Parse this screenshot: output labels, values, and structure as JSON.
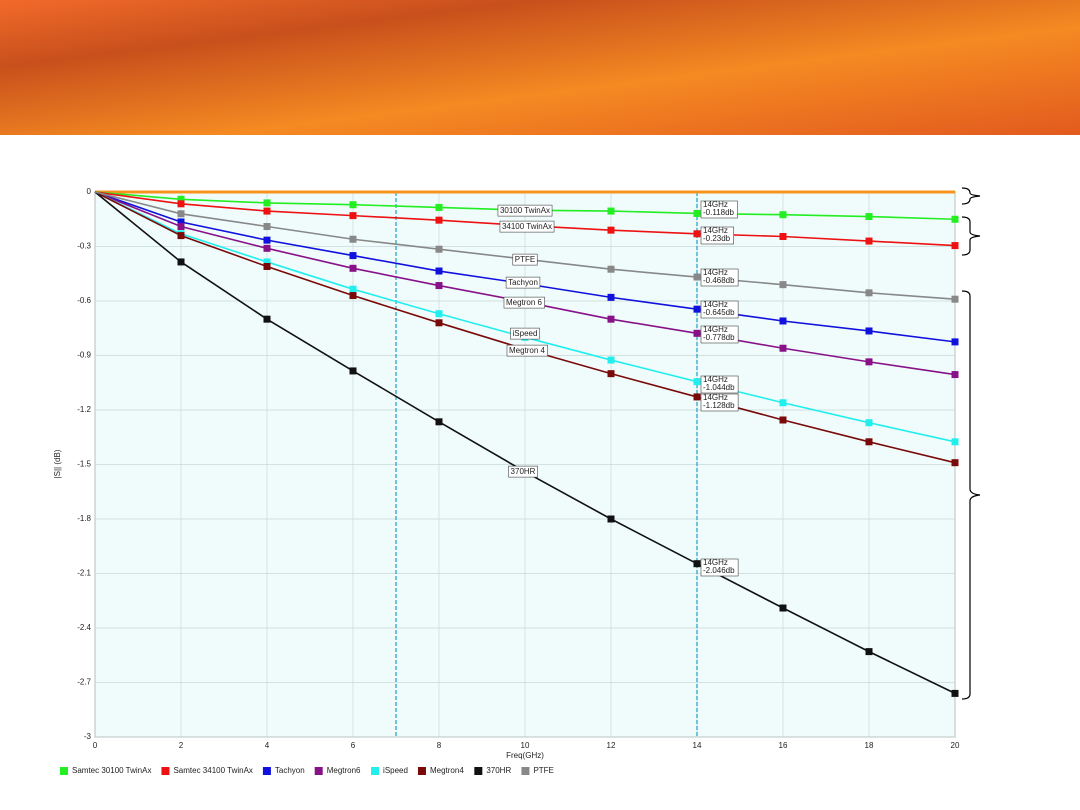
{
  "chart_data": {
    "type": "line",
    "y_label": "|S|| (dB)",
    "x_label": "Freq(GHz)",
    "x": [
      0,
      2,
      4,
      6,
      8,
      10,
      12,
      14,
      16,
      18,
      20
    ],
    "xlim": [
      0,
      20
    ],
    "xticks": [
      0,
      2,
      4,
      6,
      8,
      10,
      12,
      14,
      16,
      18,
      20
    ],
    "ylim": [
      -3,
      0
    ],
    "yticks": [
      0,
      -0.3,
      -0.6,
      -0.9,
      -1.2,
      -1.5,
      -1.8,
      -2.1,
      -2.4,
      -2.7,
      -3
    ],
    "grid": true,
    "legend": "bottom",
    "markers_x": [
      7,
      14
    ],
    "callout_prefix": "14GHz",
    "reference": {
      "color": "#f7941d",
      "values": [
        0,
        0,
        0,
        0,
        0,
        0,
        0,
        0,
        0,
        0,
        0
      ]
    },
    "series": [
      {
        "name": "Samtec 30100 TwinAx",
        "color": "#22ee22",
        "curve_label": "30100 TwinAx",
        "values": [
          0,
          -0.04,
          -0.06,
          -0.07,
          -0.085,
          -0.1,
          -0.105,
          -0.118,
          -0.125,
          -0.135,
          -0.15
        ],
        "value_labels": [
          null,
          null,
          null,
          null,
          null,
          null,
          null,
          "-0.118db",
          null,
          null,
          null
        ]
      },
      {
        "name": "Samtec 34100 TwinAx",
        "color": "#ee1111",
        "curve_label": "34100 TwinAx",
        "values": [
          0,
          -0.065,
          -0.105,
          -0.13,
          -0.155,
          -0.185,
          -0.21,
          -0.23,
          -0.245,
          -0.27,
          -0.295
        ],
        "value_labels": [
          null,
          null,
          null,
          null,
          null,
          null,
          null,
          "-0.23db",
          null,
          null,
          null
        ]
      },
      {
        "name": "Tachyon",
        "color": "#1111dd",
        "curve_label": "Tachyon",
        "values": [
          0,
          -0.165,
          -0.265,
          -0.35,
          -0.435,
          -0.505,
          -0.58,
          -0.645,
          -0.71,
          -0.765,
          -0.825
        ],
        "value_labels": [
          null,
          null,
          null,
          null,
          null,
          null,
          null,
          "-0.645db",
          null,
          null,
          null
        ]
      },
      {
        "name": "Megtron6",
        "color": "#881188",
        "curve_label": "Megtron 6",
        "values": [
          0,
          -0.19,
          -0.31,
          -0.42,
          -0.515,
          -0.605,
          -0.7,
          -0.778,
          -0.86,
          -0.935,
          -1.005
        ],
        "value_labels": [
          null,
          null,
          null,
          null,
          null,
          null,
          null,
          "-0.778db",
          null,
          null,
          null
        ]
      },
      {
        "name": "iSpeed",
        "color": "#22eeee",
        "curve_label": "iSpeed",
        "values": [
          0,
          -0.23,
          -0.385,
          -0.535,
          -0.67,
          -0.8,
          -0.925,
          -1.044,
          -1.16,
          -1.27,
          -1.375
        ],
        "value_labels": [
          null,
          null,
          null,
          null,
          null,
          null,
          null,
          "-1.044db",
          null,
          null,
          null
        ]
      },
      {
        "name": "Megtron4",
        "color": "#7a0a0a",
        "curve_label": "Megtron 4",
        "values": [
          0,
          -0.24,
          -0.41,
          -0.57,
          -0.72,
          -0.865,
          -1.0,
          -1.128,
          -1.255,
          -1.375,
          -1.49
        ],
        "value_labels": [
          null,
          null,
          null,
          null,
          null,
          null,
          null,
          "-1.128db",
          null,
          null,
          null
        ]
      },
      {
        "name": "370HR",
        "color": "#111111",
        "curve_label": "370HR",
        "values": [
          0,
          -0.385,
          -0.7,
          -0.985,
          -1.265,
          -1.54,
          -1.8,
          -2.046,
          -2.29,
          -2.53,
          -2.76
        ],
        "value_labels": [
          null,
          null,
          null,
          null,
          null,
          null,
          null,
          "-2.046db",
          null,
          null,
          null
        ]
      },
      {
        "name": "PTFE",
        "color": "#888888",
        "curve_label": "PTFE",
        "values": [
          0,
          -0.12,
          -0.19,
          -0.26,
          -0.315,
          -0.37,
          -0.425,
          -0.468,
          -0.51,
          -0.555,
          -0.59
        ],
        "value_labels": [
          null,
          null,
          null,
          null,
          null,
          null,
          null,
          "-0.468db",
          null,
          null,
          null
        ]
      }
    ]
  }
}
